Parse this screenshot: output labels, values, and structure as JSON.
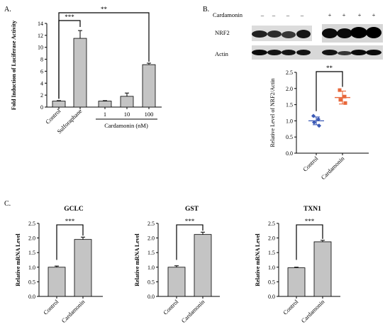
{
  "panels": {
    "a_label": "A.",
    "b_label": "B.",
    "c_label": "C."
  },
  "blot": {
    "treatment_label": "Cardamonin",
    "lane_signs": [
      "–",
      "–",
      "–",
      "–",
      "+",
      "+",
      "+",
      "+"
    ],
    "band_labels": [
      "NRF2",
      "Actin"
    ]
  },
  "colors": {
    "bar_fill": "#c4c4c4",
    "control_dots": "#3b59b5",
    "cardamonin_dots": "#e8673a"
  },
  "chart_data": [
    {
      "id": "A",
      "type": "bar",
      "title": "",
      "ylabel": "Fold Induction of Luciferase Activity",
      "xlabel": "",
      "ylim": [
        0,
        14
      ],
      "yticks": [
        0,
        2,
        4,
        6,
        8,
        10,
        12,
        14
      ],
      "categories": [
        "Control",
        "Sulforaphane",
        "1",
        "10",
        "100"
      ],
      "values": [
        1.0,
        11.5,
        1.0,
        1.8,
        7.1
      ],
      "errors": [
        0.08,
        1.3,
        0.08,
        0.55,
        0.25
      ],
      "group_label": "Cardamonin (nM)",
      "significance": [
        {
          "from": 0,
          "to": 1,
          "label": "***"
        },
        {
          "from": 0,
          "to": 4,
          "label": "**"
        }
      ]
    },
    {
      "id": "B",
      "type": "scatter",
      "title": "",
      "ylabel": "Relative Level of NRF2/Actin",
      "ylim": [
        0,
        2.5
      ],
      "yticks": [
        0.0,
        0.5,
        1.0,
        1.5,
        2.0,
        2.5
      ],
      "categories": [
        "Control",
        "Cardamonin"
      ],
      "series": [
        {
          "name": "Control",
          "points": [
            1.15,
            1.05,
            0.95,
            0.85
          ],
          "mean": 1.0,
          "sd": 0.12
        },
        {
          "name": "Cardamonin",
          "points": [
            1.95,
            1.75,
            1.65,
            1.55
          ],
          "mean": 1.72,
          "sd": 0.2
        }
      ],
      "significance": [
        {
          "from": 0,
          "to": 1,
          "label": "**"
        }
      ]
    },
    {
      "id": "C1",
      "type": "bar",
      "title": "GCLC",
      "ylabel": "Relative mRNA Level",
      "ylim": [
        0,
        2.5
      ],
      "yticks": [
        0.0,
        0.5,
        1.0,
        1.5,
        2.0,
        2.5
      ],
      "categories": [
        "Control",
        "Cardamonin"
      ],
      "values": [
        1.0,
        1.95
      ],
      "errors": [
        0.04,
        0.08
      ],
      "significance": [
        {
          "from": 0,
          "to": 1,
          "label": "***"
        }
      ]
    },
    {
      "id": "C2",
      "type": "bar",
      "title": "GST",
      "ylabel": "Relative mRNA Level",
      "ylim": [
        0,
        2.5
      ],
      "yticks": [
        0.0,
        0.5,
        1.0,
        1.5,
        2.0,
        2.5
      ],
      "categories": [
        "Control",
        "Cardamonin"
      ],
      "values": [
        1.0,
        2.12
      ],
      "errors": [
        0.05,
        0.08
      ],
      "significance": [
        {
          "from": 0,
          "to": 1,
          "label": "***"
        }
      ]
    },
    {
      "id": "C3",
      "type": "bar",
      "title": "TXN1",
      "ylabel": "Relative mRNA Level",
      "ylim": [
        0,
        2.5
      ],
      "yticks": [
        0.0,
        0.5,
        1.0,
        1.5,
        2.0,
        2.5
      ],
      "categories": [
        "Control",
        "Cardamonin"
      ],
      "values": [
        0.98,
        1.87
      ],
      "errors": [
        0.02,
        0.05
      ],
      "significance": [
        {
          "from": 0,
          "to": 1,
          "label": "***"
        }
      ]
    }
  ]
}
